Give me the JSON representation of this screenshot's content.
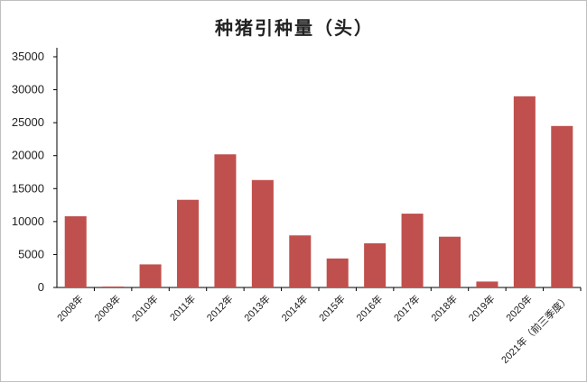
{
  "chart_data": {
    "type": "bar",
    "title": "种猪引种量（头）",
    "categories": [
      "2008年",
      "2009年",
      "2010年",
      "2011年",
      "2012年",
      "2013年",
      "2014年",
      "2015年",
      "2016年",
      "2017年",
      "2018年",
      "2019年",
      "2020年",
      "2021年（前三季度）"
    ],
    "values": [
      10800,
      150,
      3500,
      13300,
      20200,
      16300,
      7900,
      4400,
      6700,
      11200,
      7700,
      900,
      29000,
      24500
    ],
    "xlabel": "",
    "ylabel": "",
    "ylim": [
      0,
      35000
    ],
    "yticks": [
      0,
      5000,
      10000,
      15000,
      20000,
      25000,
      30000,
      35000
    ],
    "grid": false,
    "legend": "none",
    "colors": {
      "bar": "#c0504d",
      "axis": "#000000"
    }
  }
}
